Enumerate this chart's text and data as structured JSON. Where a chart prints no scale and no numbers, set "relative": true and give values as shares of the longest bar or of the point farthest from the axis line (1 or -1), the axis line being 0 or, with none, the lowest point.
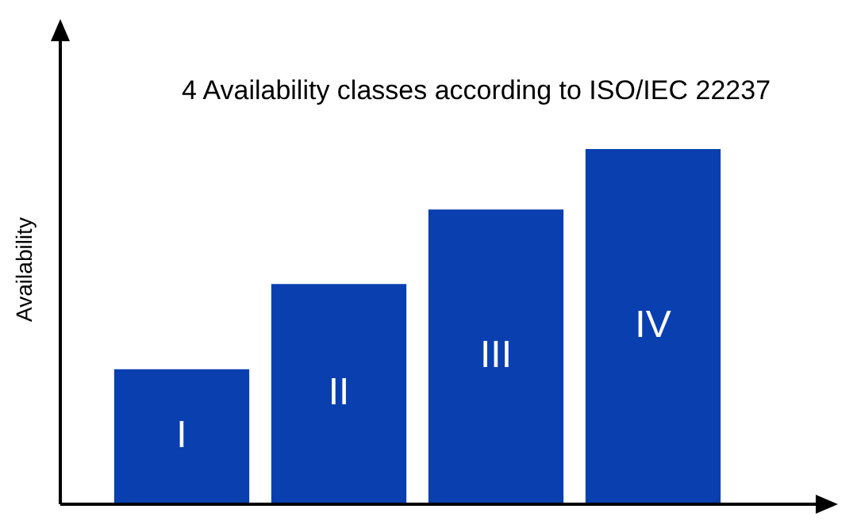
{
  "chart_data": {
    "type": "bar",
    "title": "4 Availability classes according to ISO/IEC 22237",
    "ylabel": "Availability",
    "categories": [
      "I",
      "II",
      "III",
      "IV"
    ],
    "values": [
      0.38,
      0.62,
      0.83,
      1
    ],
    "color": "#0a3fb0",
    "relative": true
  }
}
